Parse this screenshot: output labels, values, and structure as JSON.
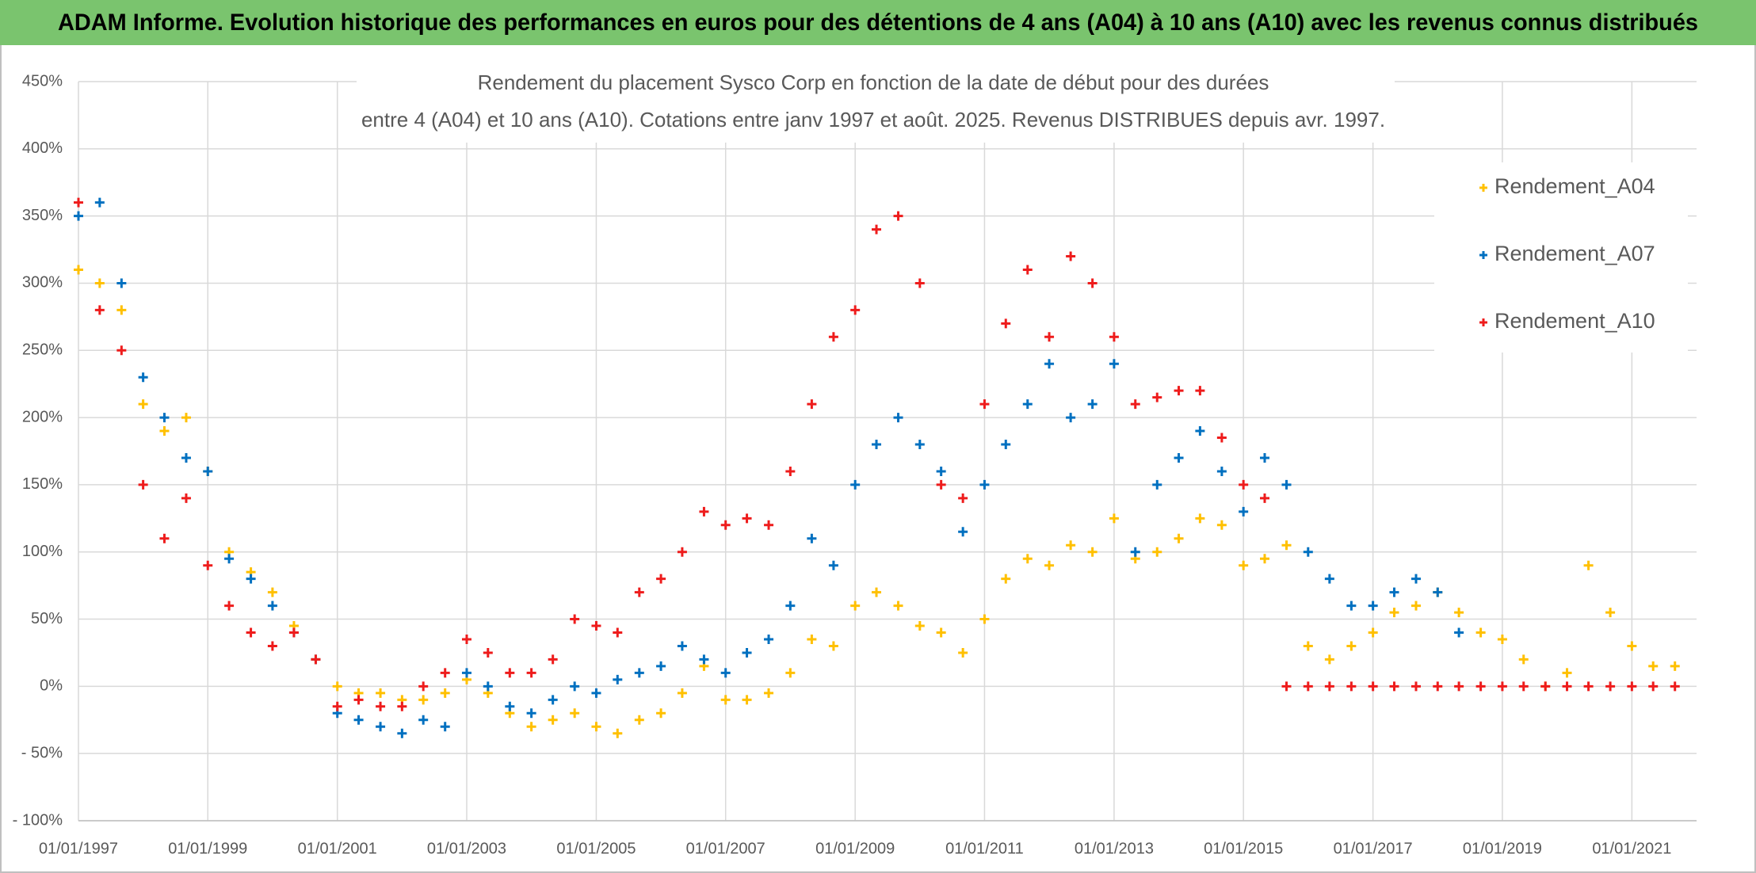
{
  "header": {
    "title": "ADAM Informe. Evolution historique des performances en euros pour des détentions de 4 ans (A04) à 10 ans (A10) avec les revenus connus distribués"
  },
  "chart_data": {
    "type": "scatter",
    "title": [
      "Rendement du placement Sysco Corp en fonction de la date de début pour des durées",
      "entre 4 (A04) et 10 ans (A10). Cotations entre janv 1997 et août. 2025. Revenus DISTRIBUES depuis avr. 1997."
    ],
    "x": [
      "1997-01-01",
      "1997-05-01",
      "1997-09-01",
      "1998-01-01",
      "1998-05-01",
      "1998-09-01",
      "1999-01-01",
      "1999-05-01",
      "1999-09-01",
      "2000-01-01",
      "2000-05-01",
      "2000-09-01",
      "2001-01-01",
      "2001-05-01",
      "2001-09-01",
      "2002-01-01",
      "2002-05-01",
      "2002-09-01",
      "2003-01-01",
      "2003-05-01",
      "2003-09-01",
      "2004-01-01",
      "2004-05-01",
      "2004-09-01",
      "2005-01-01",
      "2005-05-01",
      "2005-09-01",
      "2006-01-01",
      "2006-05-01",
      "2006-09-01",
      "2007-01-01",
      "2007-05-01",
      "2007-09-01",
      "2008-01-01",
      "2008-05-01",
      "2008-09-01",
      "2009-01-01",
      "2009-05-01",
      "2009-09-01",
      "2010-01-01",
      "2010-05-01",
      "2010-09-01",
      "2011-01-01",
      "2011-05-01",
      "2011-09-01",
      "2012-01-01",
      "2012-05-01",
      "2012-09-01",
      "2013-01-01",
      "2013-05-01",
      "2013-09-01",
      "2014-01-01",
      "2014-05-01",
      "2014-09-01",
      "2015-01-01",
      "2015-05-01",
      "2015-09-01",
      "2016-01-01",
      "2016-05-01",
      "2016-09-01",
      "2017-01-01",
      "2017-05-01",
      "2017-09-01",
      "2018-01-01",
      "2018-05-01",
      "2018-09-01",
      "2019-01-01",
      "2019-05-01",
      "2019-09-01",
      "2020-01-01",
      "2020-05-01",
      "2020-09-01",
      "2021-01-01",
      "2021-05-01",
      "2021-09-01"
    ],
    "series": [
      {
        "name": "Rendement_A04",
        "color": "#ffc000",
        "values": [
          310,
          300,
          280,
          210,
          190,
          200,
          160,
          100,
          85,
          70,
          45,
          20,
          0,
          -5,
          -5,
          -10,
          -10,
          -5,
          5,
          -5,
          -20,
          -30,
          -25,
          -20,
          -30,
          -35,
          -25,
          -20,
          -5,
          15,
          -10,
          -10,
          -5,
          10,
          35,
          30,
          60,
          70,
          60,
          45,
          40,
          25,
          50,
          80,
          95,
          90,
          105,
          100,
          125,
          95,
          100,
          110,
          125,
          120,
          90,
          95,
          105,
          30,
          20,
          30,
          40,
          55,
          60,
          70,
          55,
          40,
          35,
          20,
          0,
          10,
          90,
          55,
          30,
          15,
          15
        ]
      },
      {
        "name": "Rendement_A07",
        "color": "#0070c0",
        "values": [
          350,
          360,
          300,
          230,
          200,
          170,
          160,
          95,
          80,
          60,
          40,
          20,
          -20,
          -25,
          -30,
          -35,
          -25,
          -30,
          10,
          0,
          -15,
          -20,
          -10,
          0,
          -5,
          5,
          10,
          15,
          30,
          20,
          10,
          25,
          35,
          60,
          110,
          90,
          150,
          180,
          200,
          180,
          160,
          115,
          150,
          180,
          210,
          240,
          200,
          210,
          240,
          100,
          150,
          170,
          190,
          160,
          130,
          170,
          150,
          100,
          80,
          60,
          60,
          70,
          80,
          70,
          40,
          null,
          null,
          null,
          null,
          null,
          null,
          null,
          null,
          null,
          null
        ]
      },
      {
        "name": "Rendement_A10",
        "color": "#ee1c1c",
        "values": [
          360,
          280,
          250,
          150,
          110,
          140,
          90,
          60,
          40,
          30,
          40,
          20,
          -15,
          -10,
          -15,
          -15,
          0,
          10,
          35,
          25,
          10,
          10,
          20,
          50,
          45,
          40,
          70,
          80,
          100,
          130,
          120,
          125,
          120,
          160,
          210,
          260,
          280,
          340,
          350,
          300,
          150,
          140,
          210,
          270,
          310,
          260,
          320,
          300,
          260,
          210,
          215,
          220,
          220,
          185,
          150,
          140,
          0,
          0,
          0,
          0,
          0,
          0,
          0,
          0,
          0,
          0,
          0,
          0,
          0,
          0,
          0,
          0,
          0,
          0,
          0
        ]
      }
    ],
    "xlim": [
      "1997-01-01",
      "2022-01-01"
    ],
    "xticks": [
      {
        "value": "1997-01-01",
        "label": "01/01/1997"
      },
      {
        "value": "1999-01-01",
        "label": "01/01/1999"
      },
      {
        "value": "2001-01-01",
        "label": "01/01/2001"
      },
      {
        "value": "2003-01-01",
        "label": "01/01/2003"
      },
      {
        "value": "2005-01-01",
        "label": "01/01/2005"
      },
      {
        "value": "2007-01-01",
        "label": "01/01/2007"
      },
      {
        "value": "2009-01-01",
        "label": "01/01/2009"
      },
      {
        "value": "2011-01-01",
        "label": "01/01/2011"
      },
      {
        "value": "2013-01-01",
        "label": "01/01/2013"
      },
      {
        "value": "2015-01-01",
        "label": "01/01/2015"
      },
      {
        "value": "2017-01-01",
        "label": "01/01/2017"
      },
      {
        "value": "2019-01-01",
        "label": "01/01/2019"
      },
      {
        "value": "2021-01-01",
        "label": "01/01/2021"
      }
    ],
    "ylim": [
      -100,
      450
    ],
    "yticks": [
      {
        "value": -100,
        "label": "- 100%"
      },
      {
        "value": -50,
        "label": "- 50%"
      },
      {
        "value": 0,
        "label": "0%"
      },
      {
        "value": 50,
        "label": "50%"
      },
      {
        "value": 100,
        "label": "100%"
      },
      {
        "value": 150,
        "label": "150%"
      },
      {
        "value": 200,
        "label": "200%"
      },
      {
        "value": 250,
        "label": "250%"
      },
      {
        "value": 300,
        "label": "300%"
      },
      {
        "value": 350,
        "label": "350%"
      },
      {
        "value": 400,
        "label": "400%"
      },
      {
        "value": 450,
        "label": "450%"
      }
    ],
    "grid": true,
    "legend": "right"
  }
}
